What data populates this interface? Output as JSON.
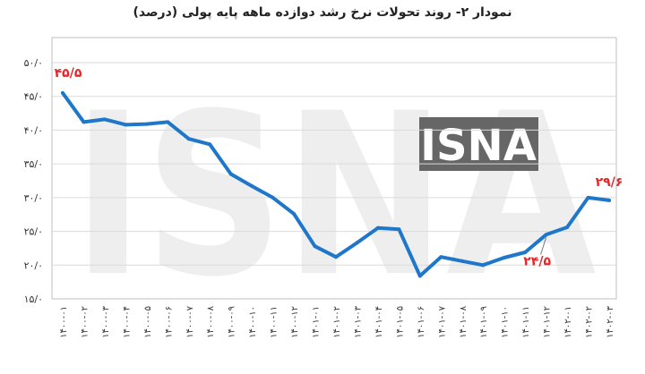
{
  "title": "نمودار ۲- روند تحولات نرخ رشد دوازده ماهه پایه پولی (درصد)",
  "watermark": "ISNA",
  "colors": {
    "line": "#1f77c9",
    "annotation": "#e8262a",
    "grid": "#dadada",
    "frame": "#bfbfbf",
    "watermark": "#eeeeee",
    "watermark_box": "#666666"
  },
  "chart_data": {
    "type": "line",
    "title": "نمودار ۲- روند تحولات نرخ رشد دوازده ماهه پایه پولی (درصد)",
    "xlabel": "",
    "ylabel": "",
    "ylim": [
      15,
      50
    ],
    "grid": true,
    "yticks": [
      {
        "value": 15,
        "label": "۱۵/۰"
      },
      {
        "value": 20,
        "label": "۲۰/۰"
      },
      {
        "value": 25,
        "label": "۲۵/۰"
      },
      {
        "value": 30,
        "label": "۳۰/۰"
      },
      {
        "value": 35,
        "label": "۳۵/۰"
      },
      {
        "value": 40,
        "label": "۴۰/۰"
      },
      {
        "value": 45,
        "label": "۴۵/۰"
      },
      {
        "value": 50,
        "label": "۵۰/۰"
      }
    ],
    "categories": [
      "۱۴۰۰-۰۱",
      "۱۴۰۰-۰۲",
      "۱۴۰۰-۰۳",
      "۱۴۰۰-۰۴",
      "۱۴۰۰-۰۵",
      "۱۴۰۰-۰۶",
      "۱۴۰۰-۰۷",
      "۱۴۰۰-۰۸",
      "۱۴۰۰-۰۹",
      "۱۴۰۰-۱۰",
      "۱۴۰۰-۱۱",
      "۱۴۰۰-۱۲",
      "۱۴۰۱-۰۱",
      "۱۴۰۱-۰۲",
      "۱۴۰۱-۰۳",
      "۱۴۰۱-۰۴",
      "۱۴۰۱-۰۵",
      "۱۴۰۱-۰۶",
      "۱۴۰۱-۰۷",
      "۱۴۰۱-۰۸",
      "۱۴۰۱-۰۹",
      "۱۴۰۱-۱۰",
      "۱۴۰۱-۱۱",
      "۱۴۰۱-۱۲",
      "۱۴۰۲-۰۱",
      "۱۴۰۲-۰۲",
      "۱۴۰۲-۰۳"
    ],
    "series": [
      {
        "values": [
          45.5,
          41.2,
          41.6,
          40.8,
          40.9,
          41.2,
          38.7,
          37.9,
          33.5,
          31.7,
          30.0,
          27.6,
          22.8,
          21.2,
          23.3,
          25.5,
          25.3,
          18.4,
          21.2,
          20.6,
          20.0,
          21.1,
          21.9,
          24.5,
          25.6,
          30.0,
          29.6
        ]
      }
    ],
    "annotations": [
      {
        "index": 0,
        "label": "۴۵/۵"
      },
      {
        "index": 23,
        "label": "۲۴/۵"
      },
      {
        "index": 26,
        "label": "۲۹/۶"
      }
    ]
  }
}
